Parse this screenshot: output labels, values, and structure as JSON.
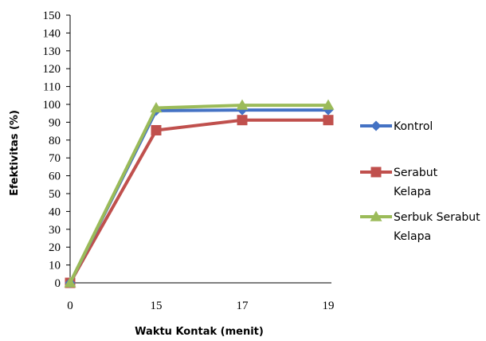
{
  "chart_data": {
    "type": "line",
    "categories": [
      "0",
      "15",
      "17",
      "19"
    ],
    "series": [
      {
        "name": "Kontrol",
        "values": [
          0,
          96.5,
          96.8,
          96.8
        ],
        "color": "#4472C4",
        "marker": "diamond"
      },
      {
        "name": "Serabut Kelapa",
        "values": [
          0,
          85.5,
          91.2,
          91.2
        ],
        "color": "#C0504D",
        "marker": "square"
      },
      {
        "name": "Serbuk Serabut Kelapa",
        "values": [
          0,
          98,
          99.5,
          99.5
        ],
        "color": "#9BBB59",
        "marker": "triangle"
      }
    ],
    "title": "",
    "xlabel": "Waktu Kontak (menit)",
    "ylabel": "Efektivitas (%)",
    "ylim": [
      0,
      150
    ],
    "yticks": [
      0,
      10,
      20,
      30,
      40,
      50,
      60,
      70,
      80,
      90,
      100,
      110,
      120,
      130,
      140,
      150
    ],
    "grid": false,
    "legend_position": "right",
    "legend_lines": [
      [
        "Kontrol"
      ],
      [
        "Serabut",
        "Kelapa"
      ],
      [
        "Serbuk Serabut",
        "Kelapa"
      ]
    ]
  }
}
